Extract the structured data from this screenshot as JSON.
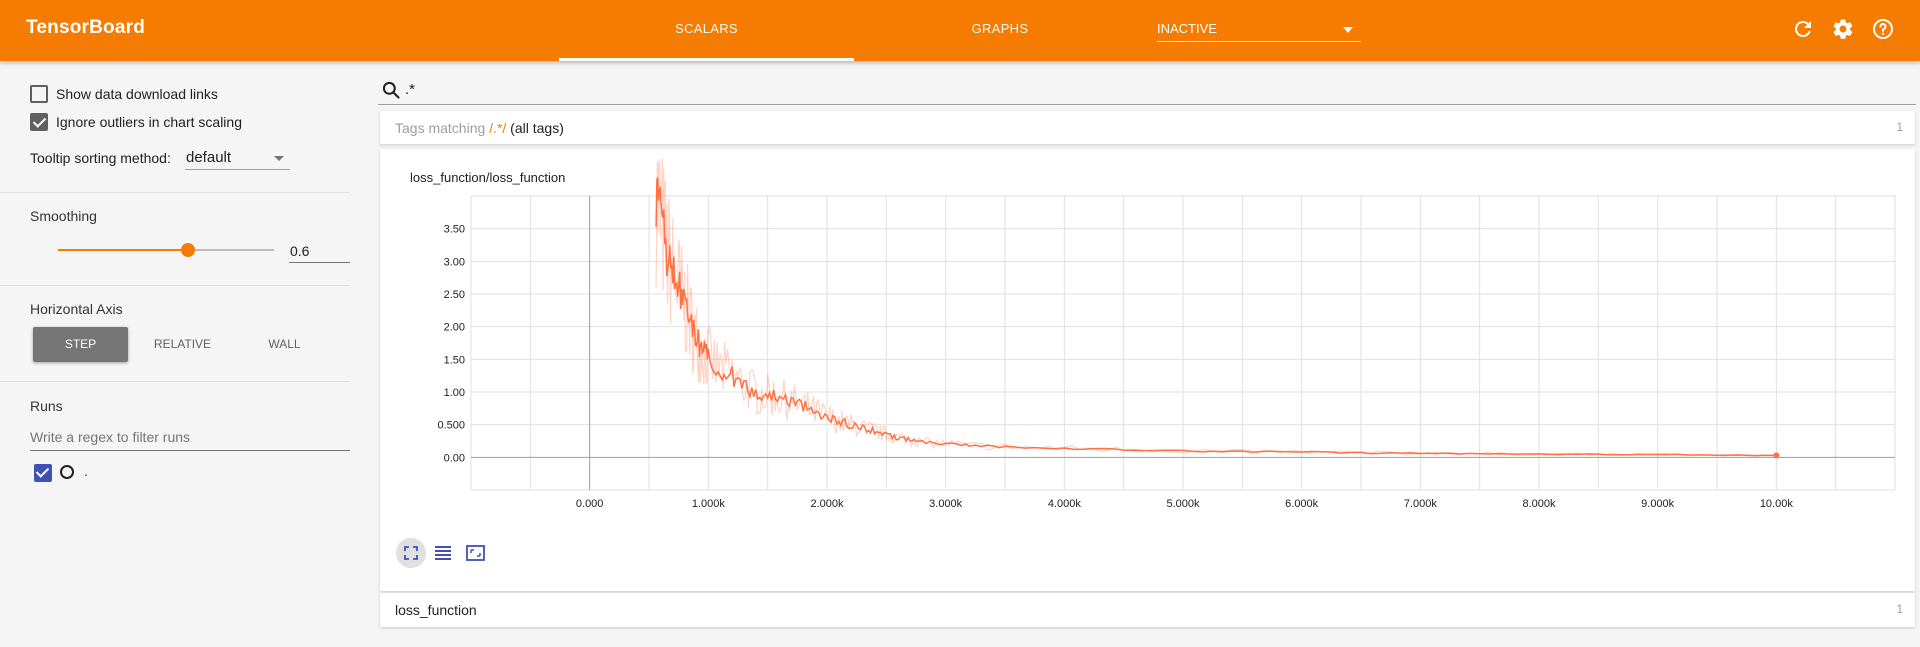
{
  "header": {
    "title": "TensorBoard",
    "tabs": [
      {
        "label": "SCALARS",
        "active": true
      },
      {
        "label": "GRAPHS",
        "active": false
      }
    ],
    "inactive_select": "INACTIVE",
    "icons": [
      "refresh-icon",
      "settings-icon",
      "help-icon"
    ],
    "accent_color": "#f57c00"
  },
  "sidebar": {
    "show_download_links": {
      "label": "Show data download links",
      "checked": false
    },
    "ignore_outliers": {
      "label": "Ignore outliers in chart scaling",
      "checked": true
    },
    "tooltip_sorting": {
      "label": "Tooltip sorting method:",
      "value": "default"
    },
    "smoothing": {
      "title": "Smoothing",
      "value": "0.6",
      "fraction": 0.6
    },
    "horizontal_axis": {
      "title": "Horizontal Axis",
      "options": [
        "STEP",
        "RELATIVE",
        "WALL"
      ],
      "selected": "STEP"
    },
    "runs": {
      "title": "Runs",
      "filter_placeholder": "Write a regex to filter runs",
      "items": [
        {
          "name": ".",
          "checked": true,
          "color": "#3f51b5"
        }
      ]
    }
  },
  "main": {
    "search_value": ".*",
    "tags_match": {
      "prefix": "Tags matching ",
      "regex": "/.*/",
      "suffix": " (all tags)",
      "count": "1"
    },
    "loss_section": {
      "title": "loss_function",
      "count": "1"
    }
  },
  "chart_data": {
    "type": "line",
    "title": "loss_function/loss_function",
    "xlabel": "",
    "ylabel": "",
    "x_ticks": [
      "0.000",
      "1.000k",
      "2.000k",
      "3.000k",
      "4.000k",
      "5.000k",
      "6.000k",
      "7.000k",
      "8.000k",
      "9.000k",
      "10.00k"
    ],
    "y_ticks": [
      "0.00",
      "0.500",
      "1.00",
      "1.50",
      "2.00",
      "2.50",
      "3.00",
      "3.50"
    ],
    "xlim": [
      -1000,
      11000
    ],
    "ylim": [
      -0.5,
      4.0
    ],
    "grid": true,
    "series": [
      {
        "name": ".",
        "color": "#ff7043",
        "x": [
          560,
          600,
          650,
          700,
          750,
          800,
          850,
          900,
          950,
          1000,
          1100,
          1200,
          1300,
          1400,
          1500,
          1600,
          1700,
          1800,
          1900,
          2000,
          2100,
          2200,
          2300,
          2400,
          2500,
          2600,
          2700,
          2800,
          3000,
          3200,
          3500,
          4000,
          4500,
          5000,
          5500,
          6000,
          6500,
          7000,
          7500,
          8000,
          8500,
          9000,
          9500,
          10000
        ],
        "values": [
          4.0,
          3.65,
          3.15,
          2.85,
          2.6,
          2.35,
          2.05,
          1.8,
          1.65,
          1.5,
          1.35,
          1.25,
          1.1,
          1.0,
          0.95,
          0.92,
          0.85,
          0.78,
          0.7,
          0.62,
          0.55,
          0.5,
          0.45,
          0.4,
          0.35,
          0.3,
          0.27,
          0.24,
          0.21,
          0.18,
          0.16,
          0.14,
          0.12,
          0.1,
          0.09,
          0.08,
          0.07,
          0.06,
          0.055,
          0.05,
          0.045,
          0.04,
          0.035,
          0.03
        ]
      }
    ]
  }
}
